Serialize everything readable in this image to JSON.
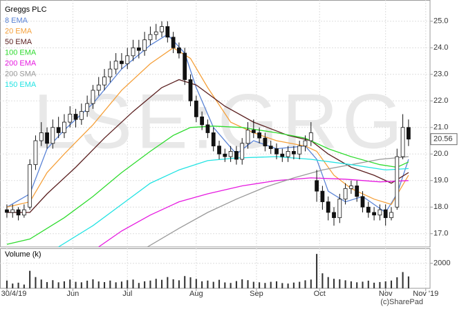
{
  "chart_data": [
    {
      "type": "candlestick",
      "title": "Greggs PLC",
      "watermark": "LSE:GRG",
      "x": [
        0,
        2,
        4,
        6,
        8,
        10,
        12,
        14,
        16,
        18,
        20,
        22,
        24,
        26,
        28,
        30,
        32,
        34,
        36,
        38,
        40,
        42,
        44,
        46,
        48,
        50,
        52,
        54,
        56,
        58,
        60,
        62,
        64,
        66,
        68,
        70,
        72,
        74,
        76,
        78,
        80,
        82,
        84,
        86,
        88,
        90,
        92,
        94,
        96,
        98,
        100,
        102,
        104,
        106,
        108,
        110,
        112,
        114,
        116,
        118,
        120,
        122,
        124,
        126,
        128,
        130,
        132,
        134,
        136,
        138,
        140
      ],
      "open": [
        17.9,
        17.8,
        17.9,
        17.7,
        18.0,
        19.6,
        20.5,
        20.8,
        20.4,
        21.0,
        20.8,
        21.2,
        21.5,
        21.3,
        21.6,
        21.9,
        22.4,
        22.6,
        22.9,
        23.2,
        23.5,
        23.4,
        23.7,
        24.0,
        23.9,
        24.3,
        24.5,
        24.6,
        24.8,
        24.4,
        24.0,
        23.8,
        22.8,
        22.0,
        21.4,
        21.1,
        20.8,
        20.3,
        20.0,
        19.9,
        20.1,
        19.8,
        20.4,
        20.9,
        20.8,
        20.6,
        20.3,
        20.2,
        20.0,
        19.9,
        20.1,
        20.0,
        20.3,
        20.5,
        19.0,
        18.6,
        18.2,
        17.8,
        17.6,
        18.3,
        18.7,
        18.8,
        18.4,
        18.0,
        17.8,
        17.7,
        17.9,
        17.6,
        18.0,
        19.9,
        21.0
      ],
      "high": [
        18.1,
        18.1,
        18.0,
        18.1,
        19.8,
        20.7,
        21.2,
        21.0,
        21.3,
        21.4,
        21.5,
        21.8,
        21.7,
        21.9,
        22.2,
        22.6,
        22.9,
        23.2,
        23.5,
        23.8,
        23.8,
        24.0,
        24.3,
        24.3,
        24.6,
        24.8,
        24.9,
        25.0,
        25.0,
        24.6,
        24.2,
        24.0,
        23.0,
        22.2,
        21.6,
        21.3,
        21.0,
        20.5,
        20.2,
        20.3,
        20.3,
        20.6,
        21.2,
        21.3,
        21.0,
        20.8,
        20.5,
        20.4,
        20.2,
        20.3,
        20.3,
        20.5,
        20.7,
        21.2,
        19.4,
        18.8,
        18.4,
        18.0,
        18.5,
        18.9,
        19.0,
        19.0,
        18.6,
        18.2,
        18.0,
        18.1,
        18.1,
        18.0,
        20.2,
        21.5,
        21.3
      ],
      "low": [
        17.6,
        17.6,
        17.5,
        17.6,
        17.9,
        19.4,
        20.3,
        20.2,
        20.2,
        20.6,
        20.6,
        21.0,
        21.0,
        21.1,
        21.4,
        21.7,
        22.2,
        22.4,
        22.7,
        23.0,
        23.2,
        23.2,
        23.5,
        23.6,
        23.7,
        24.1,
        24.3,
        24.4,
        24.2,
        23.8,
        23.6,
        22.6,
        21.8,
        21.2,
        20.9,
        20.6,
        20.1,
        19.8,
        19.7,
        19.7,
        19.6,
        19.6,
        20.2,
        20.6,
        20.4,
        20.1,
        20.0,
        19.8,
        19.7,
        19.7,
        19.8,
        19.8,
        20.1,
        20.3,
        18.2,
        17.9,
        17.5,
        17.3,
        17.4,
        18.1,
        18.5,
        18.2,
        17.8,
        17.6,
        17.5,
        17.5,
        17.3,
        17.5,
        17.9,
        19.8,
        20.3
      ],
      "close": [
        17.8,
        17.9,
        17.7,
        17.9,
        19.6,
        20.5,
        20.8,
        20.4,
        21.0,
        20.8,
        21.2,
        21.5,
        21.3,
        21.6,
        21.9,
        22.4,
        22.6,
        22.9,
        23.2,
        23.5,
        23.4,
        23.7,
        24.0,
        23.9,
        24.3,
        24.5,
        24.6,
        24.8,
        24.4,
        24.0,
        23.8,
        22.8,
        22.0,
        21.4,
        21.1,
        20.8,
        20.3,
        20.0,
        19.9,
        20.1,
        19.8,
        20.4,
        20.9,
        20.8,
        20.6,
        20.3,
        20.2,
        20.0,
        19.9,
        20.1,
        20.0,
        20.3,
        20.5,
        20.8,
        18.6,
        18.2,
        17.8,
        17.6,
        18.3,
        18.7,
        18.8,
        18.4,
        18.0,
        17.8,
        17.7,
        17.9,
        17.6,
        17.8,
        19.9,
        21.0,
        20.56
      ],
      "series": [
        {
          "name": "8 EMA",
          "color": "#5b84d6",
          "x": [
            0,
            8,
            14,
            20,
            30,
            40,
            50,
            56,
            62,
            66,
            72,
            80,
            86,
            94,
            104,
            108,
            112,
            118,
            124,
            132,
            136,
            140
          ],
          "values": [
            18.0,
            18.5,
            20.2,
            20.9,
            21.9,
            23.2,
            24.1,
            24.5,
            23.8,
            22.5,
            21.0,
            20.0,
            20.5,
            20.2,
            20.3,
            19.8,
            18.6,
            18.2,
            18.4,
            17.8,
            18.5,
            19.8
          ]
        },
        {
          "name": "20 EMA",
          "color": "#f5a03a",
          "x": [
            0,
            8,
            14,
            20,
            30,
            40,
            50,
            58,
            64,
            70,
            78,
            86,
            94,
            104,
            108,
            114,
            120,
            128,
            134,
            140
          ],
          "values": [
            18.0,
            18.2,
            19.3,
            20.0,
            21.1,
            22.4,
            23.4,
            24.0,
            23.6,
            22.5,
            21.2,
            20.8,
            20.5,
            20.3,
            20.1,
            19.2,
            18.7,
            18.3,
            18.1,
            19.2
          ]
        },
        {
          "name": "50 EMA",
          "color": "#5a1f1f",
          "x": [
            0,
            8,
            14,
            24,
            34,
            44,
            54,
            60,
            66,
            76,
            86,
            98,
            106,
            112,
            120,
            128,
            134,
            140
          ],
          "values": [
            17.8,
            17.8,
            18.5,
            19.5,
            20.6,
            21.6,
            22.5,
            22.8,
            22.6,
            21.8,
            21.2,
            20.7,
            20.5,
            20.0,
            19.5,
            19.2,
            18.9,
            19.3
          ]
        },
        {
          "name": "100 EMA",
          "color": "#2edb2e",
          "x": [
            0,
            8,
            20,
            30,
            40,
            50,
            58,
            64,
            72,
            82,
            94,
            104,
            112,
            120,
            130,
            136,
            140
          ],
          "values": [
            16.6,
            16.8,
            17.6,
            18.4,
            19.3,
            20.1,
            20.7,
            21.0,
            21.05,
            21.0,
            20.8,
            20.6,
            20.2,
            19.9,
            19.6,
            19.5,
            19.7
          ]
        },
        {
          "name": "200 EMA",
          "color": "#e619e0",
          "x": [
            32,
            40,
            50,
            60,
            70,
            82,
            94,
            106,
            118,
            130,
            140
          ],
          "values": [
            16.5,
            17.1,
            17.7,
            18.2,
            18.5,
            18.8,
            19.0,
            19.1,
            19.05,
            18.95,
            19.0
          ]
        },
        {
          "name": "200 SMA",
          "color": "#999999",
          "x": [
            49,
            60,
            70,
            80,
            90,
            100,
            110,
            120,
            130,
            140
          ],
          "values": [
            16.5,
            17.2,
            17.8,
            18.3,
            18.75,
            19.1,
            19.4,
            19.6,
            19.8,
            19.9
          ]
        },
        {
          "name": "150 EMA",
          "color": "#22e3e3",
          "x": [
            18,
            30,
            40,
            50,
            60,
            70,
            80,
            94,
            106,
            120,
            132,
            140
          ],
          "values": [
            16.5,
            17.3,
            18.1,
            18.9,
            19.4,
            19.75,
            19.85,
            19.9,
            19.8,
            19.6,
            19.4,
            19.45
          ]
        }
      ],
      "xlim": [
        -2.4,
        147.5
      ],
      "ylim": [
        16.5,
        25.8
      ],
      "yticks": [
        {
          "value": 17,
          "label": "17.0"
        },
        {
          "value": 18,
          "label": "18.0"
        },
        {
          "value": 19,
          "label": "19.0"
        },
        {
          "value": 20,
          "label": "20.0"
        },
        {
          "value": 21,
          "label": "21.0"
        },
        {
          "value": 22,
          "label": "22.0"
        },
        {
          "value": 23,
          "label": "23.0"
        },
        {
          "value": 24,
          "label": "24.0"
        },
        {
          "value": 25,
          "label": "25.0"
        }
      ],
      "grid": true
    },
    {
      "type": "bar",
      "title": "Volume (k)",
      "color": "#333333",
      "credit": "(c)SharePad",
      "x": [
        0,
        2,
        4,
        6,
        8,
        10,
        12,
        14,
        16,
        18,
        20,
        22,
        24,
        26,
        28,
        30,
        32,
        34,
        36,
        38,
        40,
        42,
        44,
        46,
        48,
        50,
        52,
        54,
        56,
        58,
        60,
        62,
        64,
        66,
        68,
        70,
        72,
        74,
        76,
        78,
        80,
        82,
        84,
        86,
        88,
        90,
        92,
        94,
        96,
        98,
        100,
        102,
        104,
        106,
        108,
        110,
        112,
        114,
        116,
        118,
        120,
        122,
        124,
        126,
        128,
        130,
        132,
        134,
        136,
        138,
        140
      ],
      "values": [
        620,
        380,
        450,
        300,
        1400,
        900,
        700,
        500,
        650,
        480,
        560,
        700,
        520,
        480,
        610,
        720,
        550,
        500,
        620,
        480,
        540,
        650,
        700,
        430,
        560,
        620,
        760,
        680,
        900,
        720,
        640,
        980,
        880,
        750,
        560,
        620,
        520,
        680,
        470,
        430,
        580,
        720,
        650,
        520,
        480,
        430,
        520,
        560,
        420,
        380,
        460,
        520,
        640,
        700,
        2750,
        1200,
        900,
        760,
        720,
        640,
        560,
        480,
        530,
        610,
        450,
        500,
        560,
        620,
        880,
        1300,
        950
      ],
      "xlim": [
        -2.4,
        147.5
      ],
      "ylim": [
        0,
        3200
      ],
      "yticks": [
        2000
      ],
      "xticks": [
        {
          "value": 0,
          "label": "30/4/19"
        },
        {
          "value": 23,
          "label": "Jun"
        },
        {
          "value": 42,
          "label": "Jul"
        },
        {
          "value": 66,
          "label": "Aug"
        },
        {
          "value": 87,
          "label": "Sep"
        },
        {
          "value": 109,
          "label": "Oct"
        },
        {
          "value": 132,
          "label": "Nov"
        },
        {
          "value": 146,
          "label": "Nov '19"
        }
      ],
      "grid": true
    }
  ]
}
